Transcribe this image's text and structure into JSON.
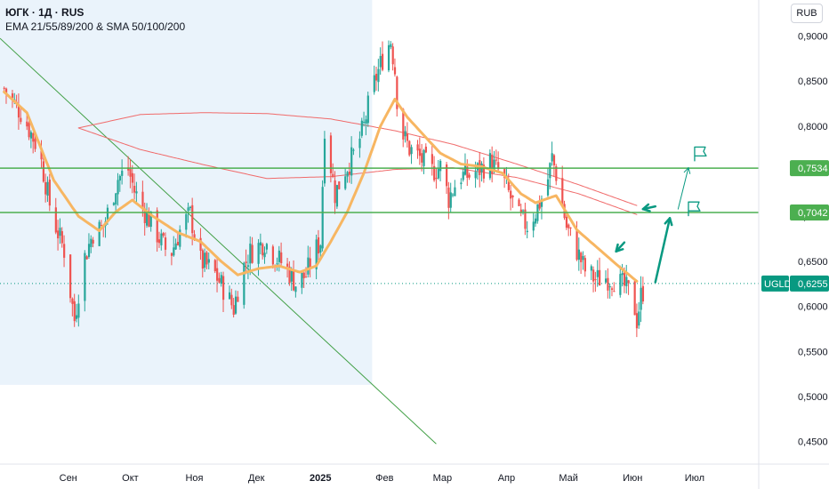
{
  "header": {
    "title": "ЮГК · 1Д · RUS",
    "indicators": "EMA 21/55/89/200 & SMA 50/100/200"
  },
  "currency_button": "RUB",
  "colors": {
    "up": "#26a69a",
    "down": "#ef5350",
    "ema": "#f7b662",
    "sma": "#f06b6b",
    "level": "#4caf50",
    "trend": "#43a047",
    "shade": "#eaf3fb",
    "price_tag": "#089981"
  },
  "chart_data": {
    "type": "candlestick",
    "symbol": "UGLD",
    "ylim": [
      0.43,
      0.94
    ],
    "y_ticks": [
      "0,9000",
      "0,8500",
      "0,8000",
      "0,7500",
      "0,7000",
      "0,6500",
      "0,6000",
      "0,5500",
      "0,5000",
      "0,4500"
    ],
    "y_tick_values": [
      0.9,
      0.85,
      0.8,
      0.75,
      0.7,
      0.65,
      0.6,
      0.55,
      0.5,
      0.45
    ],
    "x_ticks": [
      "Сен",
      "Окт",
      "Ноя",
      "Дек",
      "2025",
      "Фев",
      "Мар",
      "Апр",
      "Май",
      "Июн",
      "Июл"
    ],
    "x_tick_dates": [
      "2024-09-01",
      "2024-10-01",
      "2024-11-01",
      "2024-12-01",
      "2025-01-01",
      "2025-02-01",
      "2025-03-01",
      "2025-04-01",
      "2025-05-01",
      "2025-06-01",
      "2025-07-01"
    ],
    "x_range": [
      "2024-07-30",
      "2025-08-01"
    ],
    "shaded_range": [
      "2024-07-30",
      "2025-01-26"
    ],
    "price_anchors": [
      [
        "2024-08-01",
        0.842
      ],
      [
        "2024-08-10",
        0.812
      ],
      [
        "2024-08-18",
        0.772
      ],
      [
        "2024-08-24",
        0.702
      ],
      [
        "2024-08-30",
        0.662
      ],
      [
        "2024-09-04",
        0.585
      ],
      [
        "2024-09-08",
        0.648
      ],
      [
        "2024-09-13",
        0.682
      ],
      [
        "2024-09-18",
        0.688
      ],
      [
        "2024-09-25",
        0.742
      ],
      [
        "2024-09-30",
        0.752
      ],
      [
        "2024-10-03",
        0.728
      ],
      [
        "2024-10-08",
        0.705
      ],
      [
        "2024-10-14",
        0.68
      ],
      [
        "2024-10-20",
        0.655
      ],
      [
        "2024-10-26",
        0.69
      ],
      [
        "2024-10-30",
        0.702
      ],
      [
        "2024-11-04",
        0.65
      ],
      [
        "2024-11-10",
        0.64
      ],
      [
        "2024-11-15",
        0.62
      ],
      [
        "2024-11-20",
        0.598
      ],
      [
        "2024-11-24",
        0.64
      ],
      [
        "2024-11-28",
        0.66
      ],
      [
        "2024-12-05",
        0.672
      ],
      [
        "2024-12-10",
        0.655
      ],
      [
        "2024-12-15",
        0.645
      ],
      [
        "2024-12-20",
        0.625
      ],
      [
        "2024-12-25",
        0.635
      ],
      [
        "2024-12-29",
        0.66
      ],
      [
        "2025-01-01",
        0.672
      ],
      [
        "2025-01-03",
        0.8
      ],
      [
        "2025-01-08",
        0.725
      ],
      [
        "2025-01-13",
        0.752
      ],
      [
        "2025-01-18",
        0.772
      ],
      [
        "2025-01-22",
        0.8
      ],
      [
        "2025-01-25",
        0.832
      ],
      [
        "2025-01-28",
        0.855
      ],
      [
        "2025-02-01",
        0.882
      ],
      [
        "2025-02-04",
        0.895
      ],
      [
        "2025-02-06",
        0.862
      ],
      [
        "2025-02-08",
        0.8
      ],
      [
        "2025-02-13",
        0.775
      ],
      [
        "2025-02-18",
        0.765
      ],
      [
        "2025-02-24",
        0.75
      ],
      [
        "2025-02-28",
        0.755
      ],
      [
        "2025-03-04",
        0.72
      ],
      [
        "2025-03-09",
        0.745
      ],
      [
        "2025-03-14",
        0.745
      ],
      [
        "2025-03-19",
        0.752
      ],
      [
        "2025-03-24",
        0.76
      ],
      [
        "2025-03-29",
        0.748
      ],
      [
        "2025-04-03",
        0.72
      ],
      [
        "2025-04-07",
        0.698
      ],
      [
        "2025-04-11",
        0.69
      ],
      [
        "2025-04-15",
        0.705
      ],
      [
        "2025-04-20",
        0.73
      ],
      [
        "2025-04-23",
        0.765
      ],
      [
        "2025-04-26",
        0.738
      ],
      [
        "2025-04-30",
        0.688
      ],
      [
        "2025-05-05",
        0.662
      ],
      [
        "2025-05-09",
        0.64
      ],
      [
        "2025-05-14",
        0.63
      ],
      [
        "2025-05-19",
        0.632
      ],
      [
        "2025-05-23",
        0.63
      ],
      [
        "2025-05-28",
        0.622
      ],
      [
        "2025-06-01",
        0.61
      ],
      [
        "2025-06-03",
        0.585
      ],
      [
        "2025-06-05",
        0.612
      ],
      [
        "2025-06-07",
        0.622
      ]
    ],
    "ema_anchors": [
      [
        "2024-08-01",
        0.838
      ],
      [
        "2024-08-12",
        0.815
      ],
      [
        "2024-08-25",
        0.74
      ],
      [
        "2024-09-06",
        0.7
      ],
      [
        "2024-09-16",
        0.684
      ],
      [
        "2024-09-24",
        0.705
      ],
      [
        "2024-10-02",
        0.718
      ],
      [
        "2024-10-12",
        0.7
      ],
      [
        "2024-10-24",
        0.682
      ],
      [
        "2024-11-04",
        0.672
      ],
      [
        "2024-11-14",
        0.65
      ],
      [
        "2024-11-22",
        0.635
      ],
      [
        "2024-12-02",
        0.642
      ],
      [
        "2024-12-12",
        0.645
      ],
      [
        "2024-12-22",
        0.638
      ],
      [
        "2024-12-30",
        0.645
      ],
      [
        "2025-01-06",
        0.672
      ],
      [
        "2025-01-14",
        0.705
      ],
      [
        "2025-01-22",
        0.748
      ],
      [
        "2025-01-30",
        0.8
      ],
      [
        "2025-02-06",
        0.83
      ],
      [
        "2025-02-12",
        0.81
      ],
      [
        "2025-02-20",
        0.79
      ],
      [
        "2025-02-28",
        0.77
      ],
      [
        "2025-03-10",
        0.758
      ],
      [
        "2025-03-20",
        0.755
      ],
      [
        "2025-03-30",
        0.748
      ],
      [
        "2025-04-08",
        0.725
      ],
      [
        "2025-04-15",
        0.715
      ],
      [
        "2025-04-25",
        0.723
      ],
      [
        "2025-05-05",
        0.685
      ],
      [
        "2025-05-15",
        0.665
      ],
      [
        "2025-05-25",
        0.645
      ],
      [
        "2025-06-03",
        0.628
      ]
    ],
    "sma_upper_anchors": [
      [
        "2024-09-06",
        0.798
      ],
      [
        "2024-10-06",
        0.813
      ],
      [
        "2024-11-06",
        0.815
      ],
      [
        "2024-12-06",
        0.814
      ],
      [
        "2025-01-06",
        0.808
      ],
      [
        "2025-02-06",
        0.795
      ],
      [
        "2025-03-06",
        0.78
      ],
      [
        "2025-04-06",
        0.758
      ],
      [
        "2025-05-06",
        0.735
      ],
      [
        "2025-06-03",
        0.712
      ]
    ],
    "sma_lower_anchors": [
      [
        "2024-09-06",
        0.798
      ],
      [
        "2024-10-06",
        0.774
      ],
      [
        "2024-11-06",
        0.757
      ],
      [
        "2024-12-06",
        0.742
      ],
      [
        "2025-01-06",
        0.744
      ],
      [
        "2025-02-06",
        0.752
      ],
      [
        "2025-03-06",
        0.754
      ],
      [
        "2025-04-06",
        0.743
      ],
      [
        "2025-05-06",
        0.725
      ],
      [
        "2025-06-03",
        0.702
      ]
    ],
    "horizontal_levels": [
      {
        "value": 0.7534,
        "label": "0,7534"
      },
      {
        "value": 0.7042,
        "label": "0,7042"
      }
    ],
    "last_price": {
      "symbol": "UGLD",
      "value": 0.6255,
      "label": "0,6255"
    },
    "trend_line": {
      "start": [
        "2024-07-30",
        0.8975
      ],
      "end": [
        "2025-02-26",
        0.4475
      ]
    },
    "annotations": [
      {
        "type": "arrow",
        "from": [
          "2025-06-12",
          0.627
        ],
        "to": [
          "2025-06-19",
          0.698
        ],
        "style": "bold"
      },
      {
        "type": "arrow",
        "from": [
          "2025-06-23",
          0.708
        ],
        "to": [
          "2025-06-28",
          0.754
        ],
        "style": "thin"
      },
      {
        "type": "arrow",
        "from": [
          "2025-06-12",
          0.711
        ],
        "to": [
          "2025-06-06",
          0.708
        ],
        "style": "bold"
      },
      {
        "type": "arrow",
        "from": [
          "2025-05-28",
          0.671
        ],
        "to": [
          "2025-05-24",
          0.661
        ],
        "style": "bold"
      },
      {
        "type": "flag",
        "at": [
          "2025-07-01",
          0.769
        ]
      },
      {
        "type": "flag",
        "at": [
          "2025-06-28",
          0.708
        ]
      }
    ]
  }
}
